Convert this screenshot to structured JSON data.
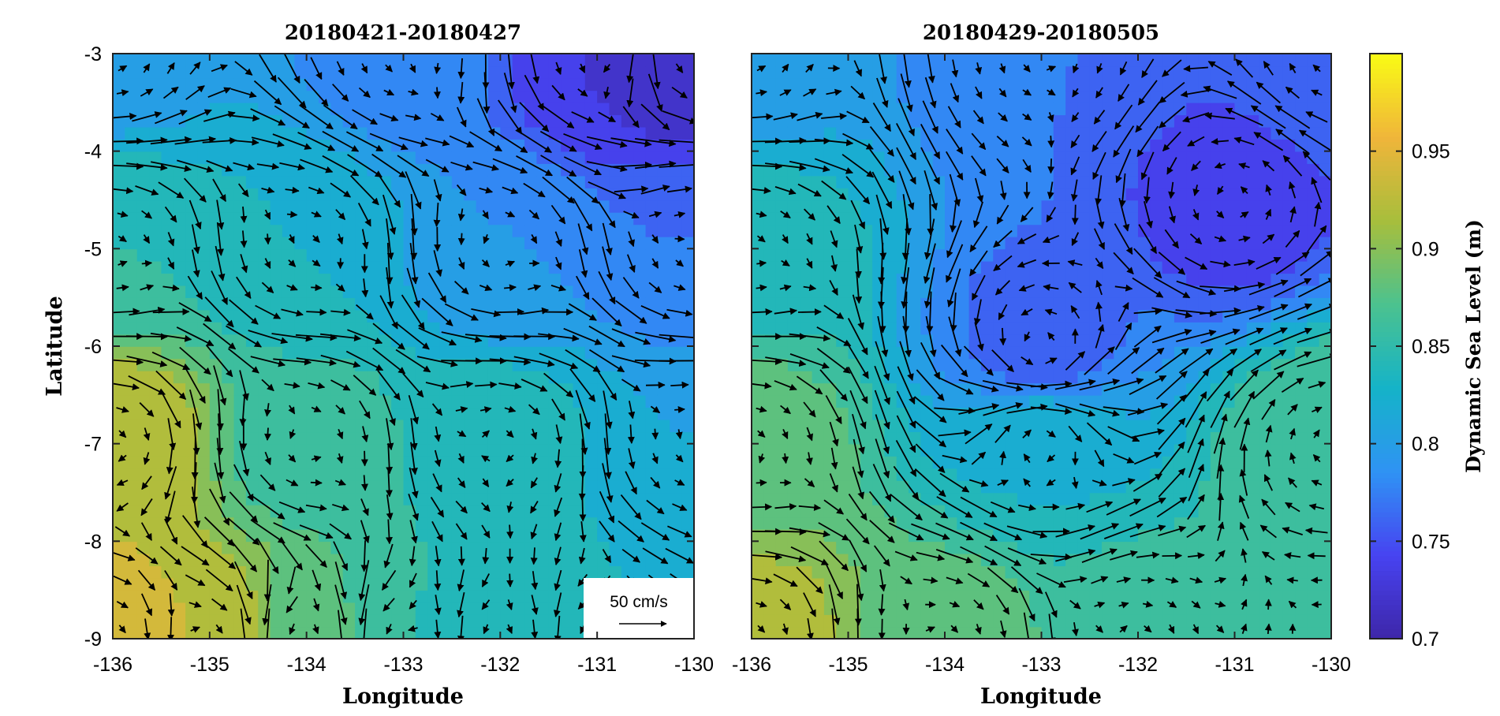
{
  "chart_data": [
    {
      "type": "heatmap",
      "subtype": "contour-with-quiver",
      "title": "20180421-20180427",
      "xlabel": "Longitude",
      "ylabel": "Latitude",
      "xlim": [
        -136,
        -130
      ],
      "ylim": [
        -9,
        -3
      ],
      "xticks": [
        -136,
        -135,
        -134,
        -133,
        -132,
        -131,
        -130
      ],
      "yticks": [
        -9,
        -8,
        -7,
        -6,
        -5,
        -4,
        -3
      ],
      "scale_key": {
        "label": "50 cm/s",
        "reference_speed_cm_s": 50,
        "location": "bottom-right"
      },
      "sea_level_samples": [
        {
          "lon": -136,
          "lat": -9,
          "ssh": 0.94
        },
        {
          "lon": -135,
          "lat": -9,
          "ssh": 0.93
        },
        {
          "lon": -134,
          "lat": -9,
          "ssh": 0.88
        },
        {
          "lon": -133,
          "lat": -9,
          "ssh": 0.85
        },
        {
          "lon": -132,
          "lat": -9,
          "ssh": 0.84
        },
        {
          "lon": -131,
          "lat": -9,
          "ssh": 0.83
        },
        {
          "lon": -136,
          "lat": -7,
          "ssh": 0.93
        },
        {
          "lon": -134,
          "lat": -7,
          "ssh": 0.86
        },
        {
          "lon": -132,
          "lat": -7,
          "ssh": 0.84
        },
        {
          "lon": -130,
          "lat": -7,
          "ssh": 0.81
        },
        {
          "lon": -136,
          "lat": -5,
          "ssh": 0.85
        },
        {
          "lon": -134,
          "lat": -5,
          "ssh": 0.83
        },
        {
          "lon": -132,
          "lat": -5,
          "ssh": 0.79
        },
        {
          "lon": -130,
          "lat": -5,
          "ssh": 0.77
        },
        {
          "lon": -136,
          "lat": -3,
          "ssh": 0.8
        },
        {
          "lon": -133,
          "lat": -3,
          "ssh": 0.78
        },
        {
          "lon": -131,
          "lat": -3,
          "ssh": 0.73
        },
        {
          "lon": -130,
          "lat": -3,
          "ssh": 0.71
        }
      ]
    },
    {
      "type": "heatmap",
      "subtype": "contour-with-quiver",
      "title": "20180429-20180505",
      "xlabel": "Longitude",
      "xlim": [
        -136,
        -130
      ],
      "ylim": [
        -9,
        -3
      ],
      "xticks": [
        -136,
        -135,
        -134,
        -133,
        -132,
        -131,
        -130
      ],
      "sea_level_samples": [
        {
          "lon": -136,
          "lat": -9,
          "ssh": 0.92
        },
        {
          "lon": -134,
          "lat": -9,
          "ssh": 0.88
        },
        {
          "lon": -132,
          "lat": -9,
          "ssh": 0.86
        },
        {
          "lon": -130,
          "lat": -9,
          "ssh": 0.86
        },
        {
          "lon": -136,
          "lat": -7,
          "ssh": 0.88
        },
        {
          "lon": -133,
          "lat": -7,
          "ssh": 0.83
        },
        {
          "lon": -130,
          "lat": -7,
          "ssh": 0.87
        },
        {
          "lon": -136,
          "lat": -5,
          "ssh": 0.84
        },
        {
          "lon": -133,
          "lat": -6,
          "ssh": 0.76
        },
        {
          "lon": -131,
          "lat": -4.5,
          "ssh": 0.74
        },
        {
          "lon": -136,
          "lat": -3,
          "ssh": 0.8
        },
        {
          "lon": -133,
          "lat": -3,
          "ssh": 0.77
        },
        {
          "lon": -130,
          "lat": -3,
          "ssh": 0.77
        }
      ]
    }
  ],
  "colorbar": {
    "label": "Dynamic Sea Level (m)",
    "range": [
      0.7,
      1.0
    ],
    "ticks": [
      "0.7",
      "0.75",
      "0.8",
      "0.85",
      "0.9",
      "0.95"
    ],
    "colormap": [
      "#3e26a8",
      "#4743f1",
      "#2f93f4",
      "#15b3c8",
      "#4bc28f",
      "#a7be3c",
      "#f0b53a",
      "#f9fb15"
    ]
  }
}
